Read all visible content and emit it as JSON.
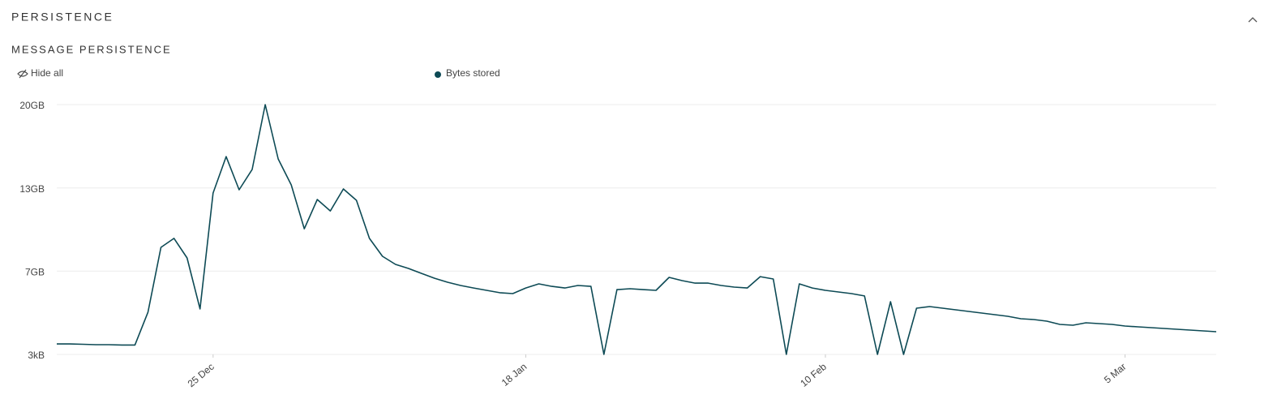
{
  "header": {
    "title": "PERSISTENCE"
  },
  "chart_data": {
    "type": "line",
    "title": "MESSAGE PERSISTENCE",
    "hide_all": "Hide all",
    "categories": [
      null,
      null,
      null,
      null,
      null,
      null,
      null,
      null,
      null,
      null,
      null,
      null,
      "25 Dec",
      null,
      null,
      null,
      null,
      null,
      null,
      null,
      null,
      null,
      null,
      null,
      null,
      null,
      null,
      null,
      null,
      null,
      null,
      null,
      null,
      null,
      null,
      null,
      "18 Jan",
      null,
      null,
      null,
      null,
      null,
      null,
      null,
      null,
      null,
      null,
      null,
      null,
      null,
      null,
      null,
      null,
      null,
      null,
      null,
      null,
      null,
      null,
      "10 Feb",
      null,
      null,
      null,
      null,
      null,
      null,
      null,
      null,
      null,
      null,
      null,
      null,
      null,
      null,
      null,
      null,
      null,
      null,
      null,
      null,
      null,
      null,
      "5 Mar",
      null,
      null,
      null,
      null,
      null,
      null,
      null
    ],
    "series": [
      {
        "name": "Bytes stored",
        "color": "#0d4a55",
        "values": [
          0.84,
          0.84,
          0.81,
          0.78,
          0.78,
          0.75,
          0.75,
          3.38,
          8.57,
          9.29,
          7.73,
          3.64,
          12.92,
          15.84,
          13.18,
          14.81,
          20,
          15.65,
          13.57,
          10.06,
          12.4,
          11.49,
          13.25,
          12.34,
          9.29,
          7.86,
          7.21,
          6.88,
          6.49,
          6.1,
          5.78,
          5.52,
          5.32,
          5.13,
          4.94,
          4.87,
          5.32,
          5.65,
          5.45,
          5.32,
          5.52,
          5.45,
          0,
          5.19,
          5.26,
          5.19,
          5.13,
          6.17,
          5.91,
          5.71,
          5.71,
          5.52,
          5.39,
          5.32,
          6.23,
          6.04,
          0,
          5.65,
          5.32,
          5.13,
          5.0,
          4.87,
          4.68,
          0,
          4.22,
          0,
          3.7,
          3.83,
          3.7,
          3.57,
          3.44,
          3.31,
          3.18,
          3.05,
          2.86,
          2.79,
          2.66,
          2.4,
          2.34,
          2.53,
          2.47,
          2.4,
          2.27,
          2.21,
          2.14,
          2.08,
          2.01,
          1.95,
          1.88,
          1.82
        ]
      }
    ],
    "ylim": [
      0,
      20
    ],
    "yticks": [
      {
        "value": 3e-06,
        "label": "3kB"
      },
      {
        "value": 6.67,
        "label": "7GB"
      },
      {
        "value": 13.33,
        "label": "13GB"
      },
      {
        "value": 20,
        "label": "20GB"
      }
    ],
    "grid": true
  }
}
